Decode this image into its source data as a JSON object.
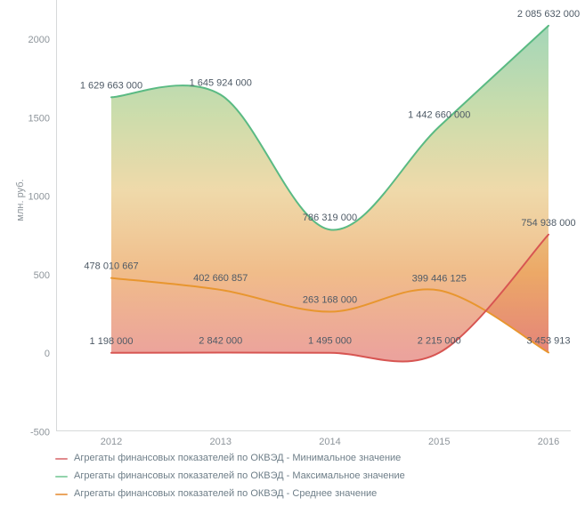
{
  "chart_data": {
    "type": "area",
    "title": "",
    "xlabel": "",
    "ylabel": "млн. руб.",
    "x_categories": [
      "2012",
      "2013",
      "2014",
      "2015",
      "2016"
    ],
    "yticks": [
      "-500",
      "0",
      "500",
      "1000",
      "1500",
      "2000"
    ],
    "ylim": [
      -500,
      2200
    ],
    "grid": false,
    "legend_position": "bottom-left",
    "series": [
      {
        "key": "min",
        "name": "Агрегаты финансовых показателей по ОКВЭД - Минимальное значение",
        "line_color": "#d75552",
        "legend_color": "#e18a8d",
        "values": [
          1198000,
          2842000,
          1495000,
          2215000,
          754938000
        ],
        "labels": [
          "1 198 000",
          "2 842 000",
          "1 495 000",
          "2 215 000",
          "754 938 000"
        ]
      },
      {
        "key": "max",
        "name": "Агрегаты финансовых показателей по ОКВЭД - Максимальное значение",
        "line_color": "#5aba83",
        "legend_color": "#92d3ab",
        "values": [
          1629663000,
          1645924000,
          786319000,
          1442660000,
          2085632000
        ],
        "labels": [
          "1 629 663 000",
          "1 645 924 000",
          "786 319 000",
          "1 442 660 000",
          "2 085 632 000"
        ]
      },
      {
        "key": "avg",
        "name": "Агрегаты финансовых показателей по ОКВЭД - Среднее значение",
        "line_color": "#e8962f",
        "legend_color": "#eba55f",
        "values": [
          478010667,
          402660857,
          263168000,
          399446125,
          3453913
        ],
        "labels": [
          "478 010 667",
          "402 660 857",
          "263 168 000",
          "399 446 125",
          "3 453 913"
        ]
      }
    ],
    "colors": {
      "point_label": "#4e5a66",
      "tick_label": "#8e959b",
      "axis_line": "#d7d9da",
      "band_gradient": [
        {
          "offset": 0,
          "color": "rgba(108,189,141,0.62)"
        },
        {
          "offset": 0.27,
          "color": "rgba(177,203,128,0.66)"
        },
        {
          "offset": 0.5,
          "color": "rgba(230,196,122,0.64)"
        },
        {
          "offset": 0.75,
          "color": "rgba(234,160,88,0.70)"
        },
        {
          "offset": 1,
          "color": "rgba(225,115,105,0.66)"
        }
      ]
    }
  }
}
